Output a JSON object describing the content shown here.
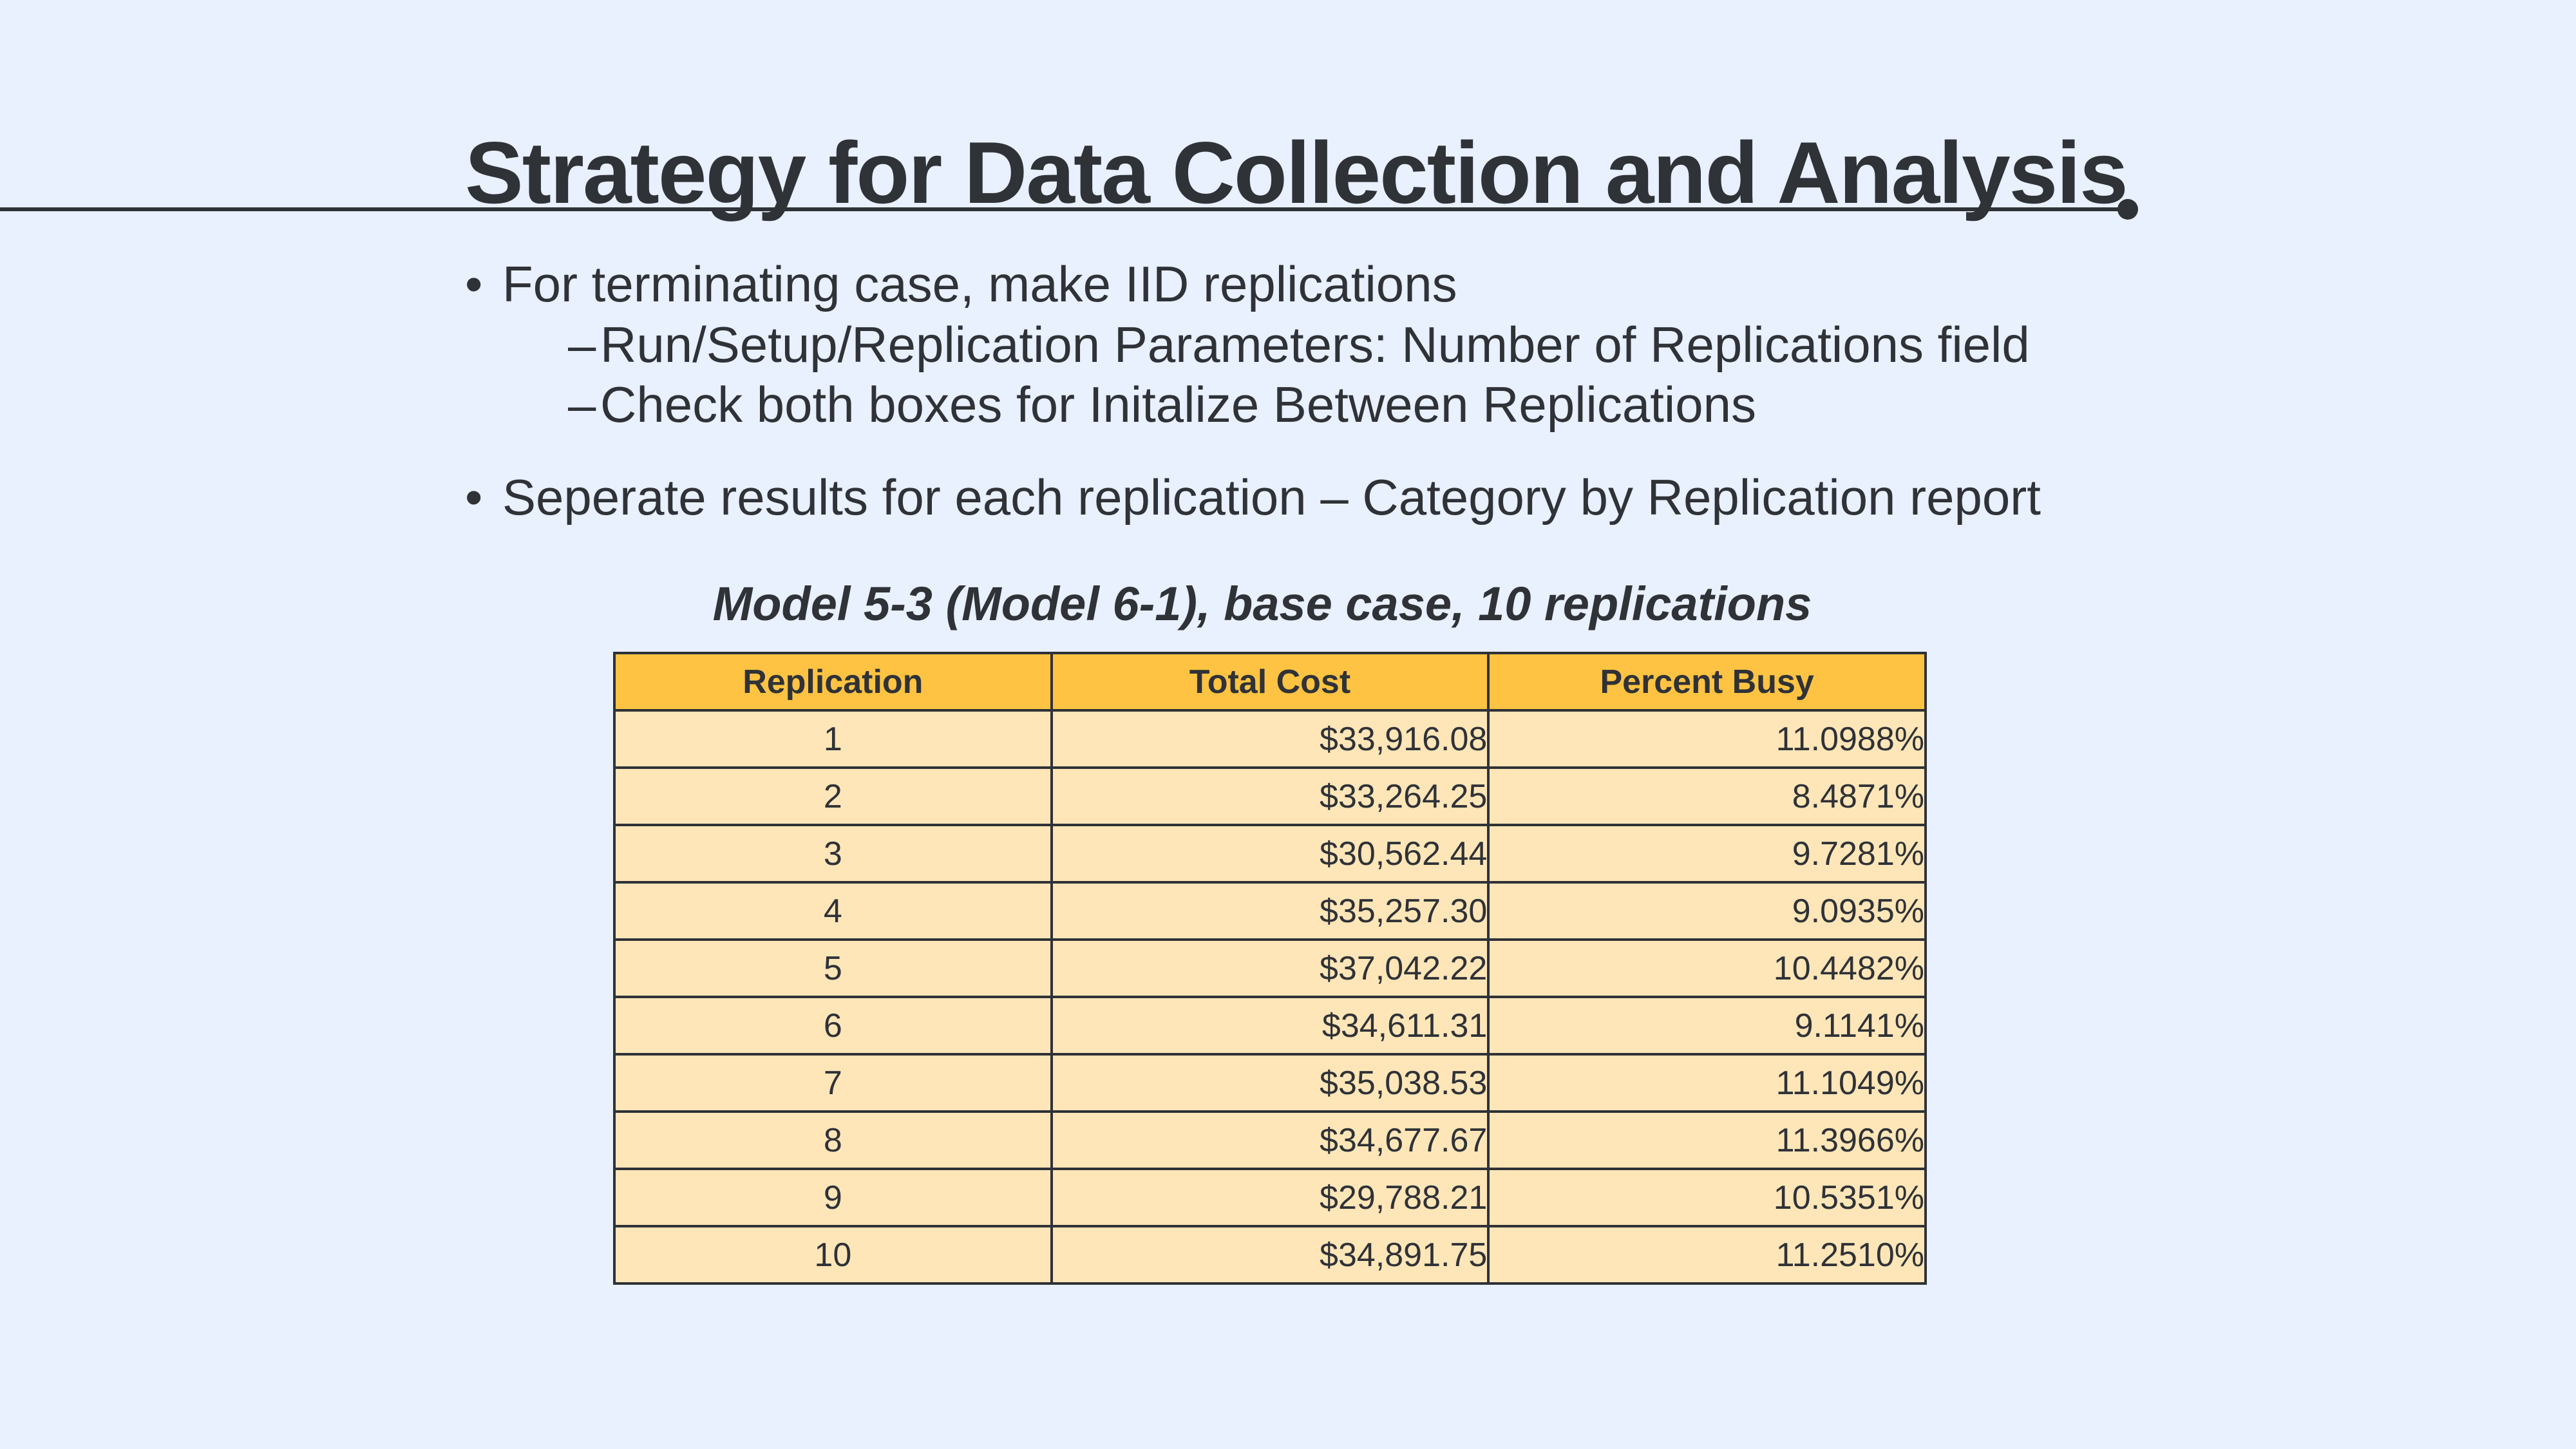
{
  "slide": {
    "title": "Strategy for Data Collection and Analysis"
  },
  "bullets": {
    "marker": "•",
    "sub_marker": "–",
    "item1": "For terminating case, make IID replications",
    "item1_sub1": "Run/Setup/Replication Parameters: Number of Replications field",
    "item1_sub2": "Check both boxes for Initalize Between Replications",
    "item2": "Seperate results for each replication – Category by Replication report"
  },
  "table": {
    "caption": "Model 5-3 (Model 6-1), base case, 10 replications",
    "headers": [
      "Replication",
      "Total Cost",
      "Percent Busy"
    ],
    "rows": [
      [
        "1",
        "$33,916.08",
        "11.0988%"
      ],
      [
        "2",
        "$33,264.25",
        "8.4871%"
      ],
      [
        "3",
        "$30,562.44",
        "9.7281%"
      ],
      [
        "4",
        "$35,257.30",
        "9.0935%"
      ],
      [
        "5",
        "$37,042.22",
        "10.4482%"
      ],
      [
        "6",
        "$34,611.31",
        "9.1141%"
      ],
      [
        "7",
        "$35,038.53",
        "11.1049%"
      ],
      [
        "8",
        "$34,677.67",
        "11.3966%"
      ],
      [
        "9",
        "$29,788.21",
        "10.5351%"
      ],
      [
        "10",
        "$34,891.75",
        "11.2510%"
      ]
    ]
  },
  "colors": {
    "background": "#e9f0fe",
    "text": "#2f3237",
    "header_fill": "#fec342",
    "cell_fill": "#ffe6b8"
  }
}
